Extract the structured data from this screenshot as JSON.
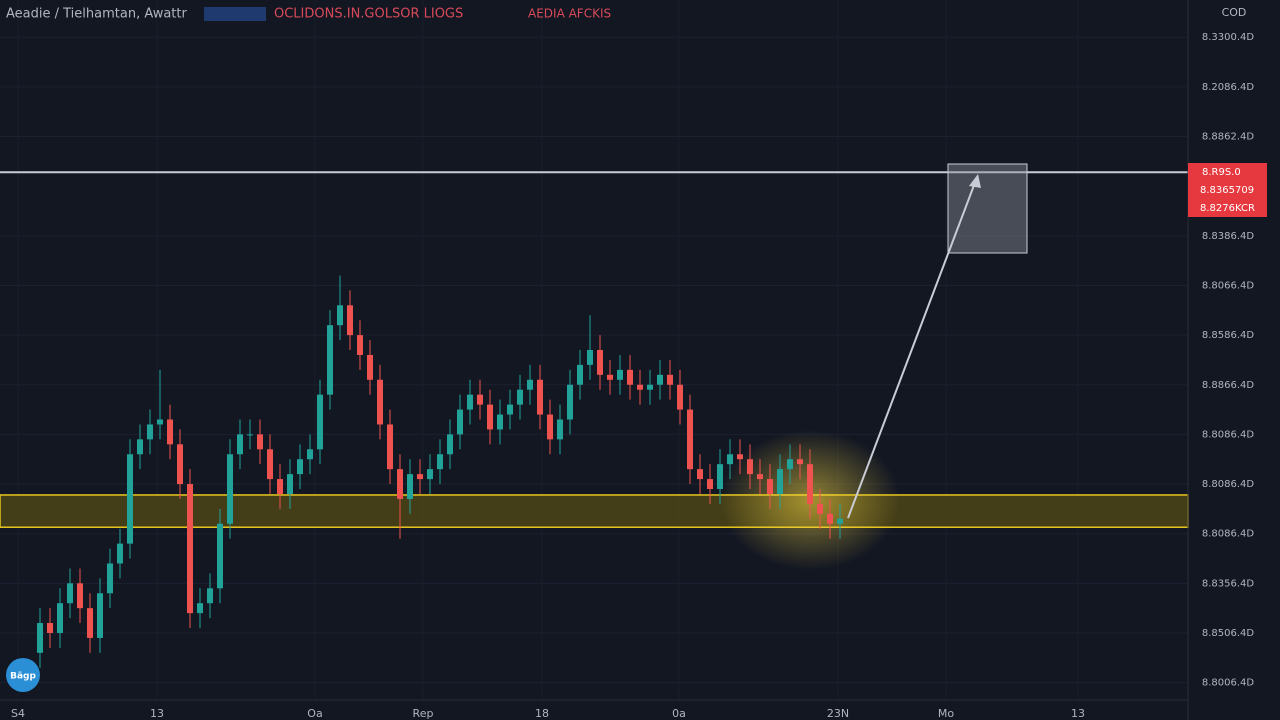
{
  "chart_data": {
    "type": "candlestick",
    "title": "Aeadie / Tielhamtan, Awattr",
    "subtitle": "OCLIDONS.IN.GOLSOR LIOGS",
    "annotation": "AEDIA AFCKIS",
    "corner_label": "COD",
    "logo": "Bägp",
    "price_labels": [
      "8.R9S.0",
      "8.8365709",
      "8.8276KCR"
    ],
    "up_color": "#22a39a",
    "down_color": "#ef5350",
    "x": [
      4,
      5,
      6,
      7,
      8,
      9,
      10,
      11,
      12,
      13,
      14,
      15,
      16,
      17,
      18,
      19,
      20,
      21,
      22,
      23,
      24,
      25,
      26,
      27,
      28,
      29,
      30,
      31,
      32,
      33,
      34,
      35,
      36,
      37,
      38,
      39,
      40,
      41,
      42,
      43,
      44,
      45,
      46,
      47,
      48,
      49,
      50,
      51,
      52,
      53,
      54,
      55,
      56,
      57,
      58,
      59,
      60,
      61,
      62,
      63,
      64,
      65,
      66,
      67,
      68,
      69,
      70,
      71,
      72,
      73,
      74,
      75,
      76,
      77,
      78,
      79,
      80,
      81,
      82,
      83,
      84
    ],
    "open": [
      0.6,
      1.2,
      1.0,
      1.6,
      2.0,
      1.5,
      0.9,
      1.8,
      2.4,
      2.8,
      4.6,
      4.9,
      5.2,
      5.3,
      4.8,
      4.0,
      1.4,
      1.6,
      1.9,
      3.2,
      4.6,
      5.0,
      5.0,
      4.7,
      4.1,
      3.8,
      4.2,
      4.5,
      4.7,
      5.8,
      7.2,
      7.6,
      7.0,
      6.6,
      6.1,
      5.2,
      4.3,
      3.7,
      4.2,
      4.1,
      4.3,
      4.6,
      5.0,
      5.5,
      5.8,
      5.6,
      5.1,
      5.4,
      5.6,
      5.9,
      6.1,
      5.4,
      4.9,
      5.3,
      6.0,
      6.4,
      6.7,
      6.2,
      6.1,
      6.3,
      6.0,
      5.9,
      6.0,
      6.2,
      6.0,
      5.5,
      4.3,
      4.1,
      3.9,
      4.4,
      4.6,
      4.5,
      4.2,
      4.1,
      3.8,
      4.3,
      4.5,
      4.4,
      3.6,
      3.4,
      3.2
    ],
    "close": [
      1.2,
      1.0,
      1.6,
      2.0,
      1.5,
      0.9,
      1.8,
      2.4,
      2.8,
      4.6,
      4.9,
      5.2,
      5.3,
      4.8,
      4.0,
      1.4,
      1.6,
      1.9,
      3.2,
      4.6,
      5.0,
      5.0,
      4.7,
      4.1,
      3.8,
      4.2,
      4.5,
      4.7,
      5.8,
      7.2,
      7.6,
      7.0,
      6.6,
      6.1,
      5.2,
      4.3,
      3.7,
      4.2,
      4.1,
      4.3,
      4.6,
      5.0,
      5.5,
      5.8,
      5.6,
      5.1,
      5.4,
      5.6,
      5.9,
      6.1,
      5.4,
      4.9,
      5.3,
      6.0,
      6.4,
      6.7,
      6.2,
      6.1,
      6.3,
      6.0,
      5.9,
      6.0,
      6.2,
      6.0,
      5.5,
      4.3,
      4.1,
      3.9,
      4.4,
      4.6,
      4.5,
      4.2,
      4.1,
      3.8,
      4.3,
      4.5,
      4.4,
      3.6,
      3.4,
      3.2,
      3.3
    ],
    "high": [
      1.5,
      1.5,
      1.9,
      2.3,
      2.3,
      1.8,
      2.1,
      2.7,
      3.1,
      4.9,
      5.2,
      5.5,
      6.3,
      5.6,
      5.1,
      4.3,
      1.9,
      2.2,
      3.5,
      4.9,
      5.3,
      5.3,
      5.3,
      5.0,
      4.4,
      4.5,
      4.8,
      5.0,
      6.1,
      7.5,
      8.2,
      7.9,
      7.3,
      6.9,
      6.4,
      5.5,
      4.6,
      4.5,
      4.5,
      4.6,
      4.9,
      5.3,
      5.8,
      6.1,
      6.1,
      5.9,
      5.7,
      5.9,
      6.2,
      6.4,
      6.4,
      5.7,
      5.6,
      6.3,
      6.7,
      7.4,
      7.0,
      6.5,
      6.6,
      6.6,
      6.3,
      6.3,
      6.5,
      6.5,
      6.3,
      5.8,
      4.6,
      4.4,
      4.7,
      4.9,
      4.9,
      4.8,
      4.5,
      4.4,
      4.6,
      4.8,
      4.8,
      4.7,
      3.9,
      3.7,
      3.6
    ],
    "low": [
      0.3,
      0.7,
      0.7,
      1.3,
      1.2,
      0.6,
      0.6,
      1.5,
      2.1,
      2.5,
      4.3,
      4.6,
      4.9,
      4.5,
      3.7,
      1.1,
      1.1,
      1.3,
      1.6,
      2.9,
      4.3,
      4.7,
      4.4,
      3.8,
      3.5,
      3.5,
      3.9,
      4.2,
      4.4,
      5.5,
      6.9,
      6.7,
      6.3,
      5.8,
      4.9,
      4.0,
      2.9,
      3.4,
      3.8,
      3.8,
      4.0,
      4.3,
      4.7,
      5.2,
      5.3,
      4.8,
      4.8,
      5.1,
      5.3,
      5.6,
      5.1,
      4.6,
      4.6,
      5.0,
      5.7,
      6.1,
      5.9,
      5.8,
      5.8,
      5.7,
      5.6,
      5.6,
      5.7,
      5.7,
      5.2,
      4.0,
      3.8,
      3.6,
      3.6,
      4.1,
      4.2,
      3.9,
      3.8,
      3.5,
      3.5,
      4.0,
      4.1,
      3.3,
      3.1,
      2.9,
      2.9
    ],
    "level": 10.28,
    "zone": [
      3.13,
      3.78
    ],
    "xlim": [
      0,
      118.8
    ],
    "xticks": [
      {
        "value": 1.8,
        "label": "S4"
      },
      {
        "value": 15.7,
        "label": "13"
      },
      {
        "value": 31.5,
        "label": "Oa"
      },
      {
        "value": 42.3,
        "label": "Rep"
      },
      {
        "value": 54.2,
        "label": "18"
      },
      {
        "value": 67.9,
        "label": "0a"
      },
      {
        "value": 83.8,
        "label": "23N"
      },
      {
        "value": 94.6,
        "label": "Mo"
      },
      {
        "value": 107.8,
        "label": "13"
      }
    ],
    "ylim": [
      -0.35,
      13.75
    ],
    "yticks": [
      {
        "value": 13,
        "label": "8.3300.4D"
      },
      {
        "value": 12,
        "label": "8.2086.4D"
      },
      {
        "value": 11,
        "label": "8.8862.4D"
      },
      {
        "value": 9,
        "label": "8.8386.4D"
      },
      {
        "value": 8,
        "label": "8.8066.4D"
      },
      {
        "value": 7,
        "label": "8.8586.4D"
      },
      {
        "value": 6,
        "label": "8.8866.4D"
      },
      {
        "value": 5,
        "label": "8.8086.4D"
      },
      {
        "value": 4,
        "label": "8.8086.4D"
      },
      {
        "value": 3,
        "label": "8.8086.4D"
      },
      {
        "value": 2,
        "label": "8.8356.4D"
      },
      {
        "value": 1,
        "label": "8.8506.4D"
      },
      {
        "value": 0,
        "label": "8.8006.4D"
      }
    ],
    "grid": true
  }
}
